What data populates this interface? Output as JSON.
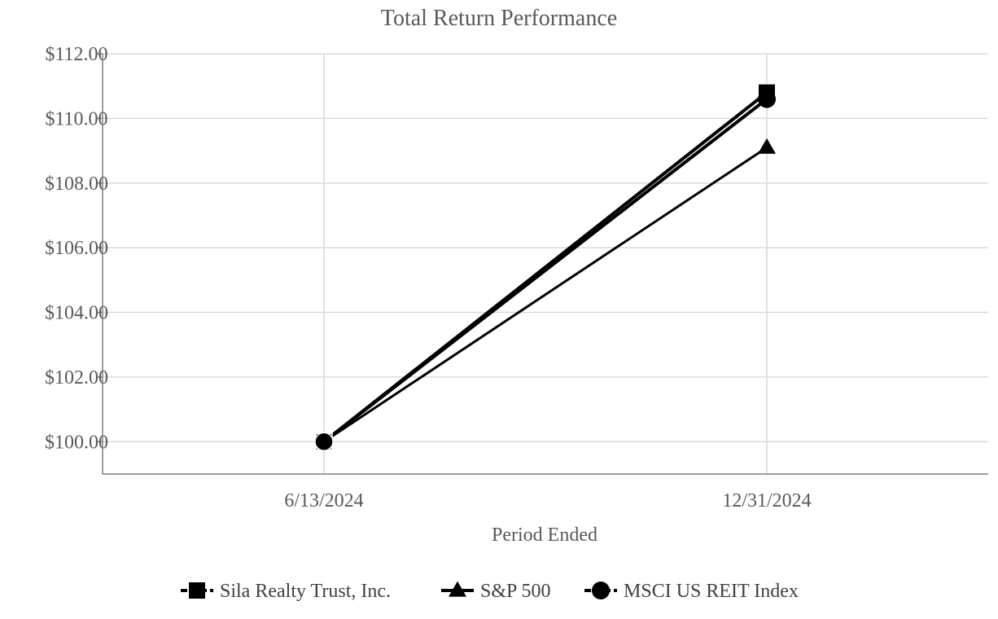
{
  "chart_data": {
    "type": "line",
    "title": "Total Return Performance",
    "xlabel": "Period Ended",
    "ylabel": "",
    "categories": [
      "6/13/2024",
      "12/31/2024"
    ],
    "ylim": [
      99,
      112
    ],
    "yticks": [
      100,
      102,
      104,
      106,
      108,
      110,
      112
    ],
    "ytick_labels": [
      "$100.00",
      "$102.00",
      "$104.00",
      "$106.00",
      "$108.00",
      "$110.00",
      "$112.00"
    ],
    "grid": true,
    "legend_position": "bottom",
    "series": [
      {
        "name": "Sila Realty Trust, Inc.",
        "values": [
          100.0,
          110.8
        ],
        "marker": "square",
        "color": "#000000",
        "width": 4
      },
      {
        "name": "S&P 500",
        "values": [
          100.0,
          109.1
        ],
        "marker": "triangle",
        "color": "#000000",
        "width": 3
      },
      {
        "name": "MSCI US REIT Index",
        "values": [
          100.0,
          110.6
        ],
        "marker": "circle",
        "color": "#000000",
        "width": 4
      }
    ]
  }
}
